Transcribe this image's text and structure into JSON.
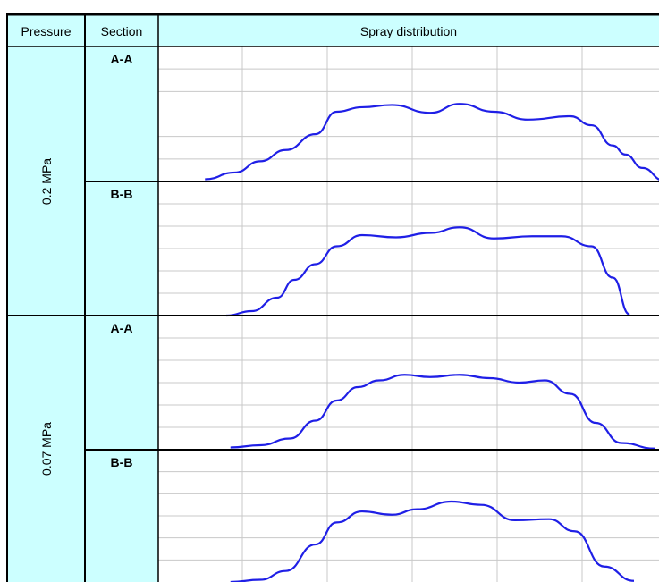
{
  "header": {
    "pressure": "Pressure",
    "section": "Section",
    "spray": "Spray distribution"
  },
  "groups": [
    {
      "pressure": "0.2 MPa",
      "sections": [
        "A-A",
        "B-B"
      ]
    },
    {
      "pressure": "0.07 MPa",
      "sections": [
        "A-A",
        "B-B"
      ]
    }
  ],
  "colors": {
    "header_bg": "#ccffff",
    "curve": "#1f1fe6",
    "grid": "#c8c8c8",
    "border": "#000000"
  },
  "chart_data": [
    {
      "type": "line",
      "pressure": "0.2 MPa",
      "section": "A-A",
      "grid": true,
      "ylim": [
        0,
        6
      ],
      "xlim": [
        0,
        5.6
      ],
      "series": [
        {
          "x": [
            0.55,
            0.9,
            1.2,
            1.5,
            1.85,
            2.1,
            2.4,
            2.75,
            3.2,
            3.55,
            3.95,
            4.35,
            4.85,
            5.1,
            5.35,
            5.5,
            5.7,
            5.95
          ],
          "values": [
            0.1,
            0.4,
            0.9,
            1.4,
            2.1,
            3.1,
            3.3,
            3.4,
            3.05,
            3.45,
            3.1,
            2.75,
            2.9,
            2.5,
            1.6,
            1.2,
            0.6,
            0.05
          ]
        }
      ]
    },
    {
      "type": "line",
      "pressure": "0.2 MPa",
      "section": "B-B",
      "grid": true,
      "ylim": [
        0,
        6
      ],
      "xlim": [
        0,
        5.6
      ],
      "series": [
        {
          "x": [
            0.8,
            1.1,
            1.4,
            1.6,
            1.85,
            2.1,
            2.4,
            2.8,
            3.2,
            3.55,
            3.95,
            4.4,
            4.75,
            5.1,
            5.35,
            5.55
          ],
          "values": [
            0.0,
            0.2,
            0.8,
            1.6,
            2.3,
            3.1,
            3.6,
            3.5,
            3.7,
            3.95,
            3.45,
            3.55,
            3.55,
            3.1,
            1.7,
            0.05
          ]
        }
      ]
    },
    {
      "type": "line",
      "pressure": "0.07 MPa",
      "section": "A-A",
      "grid": true,
      "ylim": [
        0,
        6
      ],
      "xlim": [
        0,
        5.6
      ],
      "series": [
        {
          "x": [
            0.85,
            1.2,
            1.55,
            1.85,
            2.1,
            2.35,
            2.6,
            2.9,
            3.2,
            3.55,
            3.9,
            4.25,
            4.55,
            4.85,
            5.15,
            5.45,
            5.85
          ],
          "values": [
            0.1,
            0.2,
            0.5,
            1.3,
            2.2,
            2.8,
            3.1,
            3.35,
            3.25,
            3.35,
            3.2,
            3.0,
            3.1,
            2.5,
            1.2,
            0.3,
            0.05
          ]
        }
      ]
    },
    {
      "type": "line",
      "pressure": "0.07 MPa",
      "section": "B-B",
      "grid": true,
      "ylim": [
        0,
        6
      ],
      "xlim": [
        0,
        5.6
      ],
      "series": [
        {
          "x": [
            0.85,
            1.2,
            1.5,
            1.85,
            2.1,
            2.4,
            2.75,
            3.05,
            3.45,
            3.8,
            4.2,
            4.6,
            4.9,
            5.25,
            5.6
          ],
          "values": [
            0.0,
            0.1,
            0.5,
            1.7,
            2.7,
            3.2,
            3.05,
            3.3,
            3.65,
            3.5,
            2.8,
            2.85,
            2.3,
            0.7,
            0.05
          ]
        }
      ]
    }
  ]
}
